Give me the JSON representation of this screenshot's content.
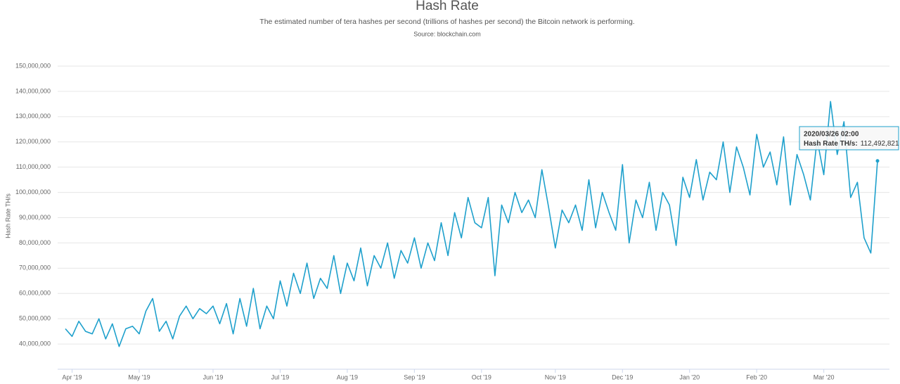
{
  "chart_data": {
    "type": "line",
    "title": "Hash Rate",
    "subtitle": "The estimated number of tera hashes per second (trillions of hashes per second) the Bitcoin network is performing.",
    "source": "Source: blockchain.com",
    "y_label": "Hash Rate TH/s",
    "categories": [
      null,
      "Apr '19",
      null,
      null,
      null,
      null,
      null,
      null,
      null,
      null,
      null,
      "May '19",
      null,
      null,
      null,
      null,
      null,
      null,
      null,
      null,
      null,
      null,
      "Jun '19",
      null,
      null,
      null,
      null,
      null,
      null,
      null,
      null,
      null,
      "Jul '19",
      null,
      null,
      null,
      null,
      null,
      null,
      null,
      null,
      null,
      "Aug '19",
      null,
      null,
      null,
      null,
      null,
      null,
      null,
      null,
      null,
      "Sep '19",
      null,
      null,
      null,
      null,
      null,
      null,
      null,
      null,
      null,
      "Oct '19",
      null,
      null,
      null,
      null,
      null,
      null,
      null,
      null,
      null,
      null,
      "Nov '19",
      null,
      null,
      null,
      null,
      null,
      null,
      null,
      null,
      null,
      "Dec '19",
      null,
      null,
      null,
      null,
      null,
      null,
      null,
      null,
      null,
      "Jan '20",
      null,
      null,
      null,
      null,
      null,
      null,
      null,
      null,
      null,
      "Feb '20",
      null,
      null,
      null,
      null,
      null,
      null,
      null,
      null,
      null,
      "Mar '20",
      null,
      null,
      null,
      null,
      null,
      null,
      null,
      null
    ],
    "series": [
      {
        "name": "Hash Rate TH/s",
        "color": "#1ea0cc",
        "values": [
          46000000,
          43000000,
          49000000,
          45000000,
          44000000,
          50000000,
          42000000,
          48000000,
          39000000,
          46000000,
          47000000,
          44000000,
          53000000,
          58000000,
          45000000,
          49000000,
          42000000,
          51000000,
          55000000,
          50000000,
          54000000,
          52000000,
          55000000,
          48000000,
          56000000,
          44000000,
          58000000,
          47000000,
          62000000,
          46000000,
          55000000,
          50000000,
          65000000,
          55000000,
          68000000,
          60000000,
          72000000,
          58000000,
          66000000,
          62000000,
          75000000,
          60000000,
          72000000,
          65000000,
          78000000,
          63000000,
          75000000,
          70000000,
          80000000,
          66000000,
          77000000,
          72000000,
          82000000,
          70000000,
          80000000,
          73000000,
          88000000,
          75000000,
          92000000,
          82000000,
          98000000,
          88000000,
          86000000,
          98000000,
          67000000,
          95000000,
          88000000,
          100000000,
          92000000,
          97000000,
          90000000,
          109000000,
          94000000,
          78000000,
          93000000,
          88000000,
          95000000,
          85000000,
          105000000,
          86000000,
          100000000,
          92000000,
          85000000,
          111000000,
          80000000,
          97000000,
          90000000,
          104000000,
          85000000,
          100000000,
          95000000,
          79000000,
          106000000,
          98000000,
          113000000,
          97000000,
          108000000,
          105000000,
          120000000,
          100000000,
          118000000,
          110000000,
          99000000,
          123000000,
          110000000,
          116000000,
          103000000,
          122000000,
          95000000,
          115000000,
          107000000,
          97000000,
          121000000,
          107000000,
          136000000,
          115000000,
          128000000,
          98000000,
          104000000,
          82000000,
          76000000,
          112492821
        ]
      }
    ],
    "ylim": [
      30000000,
      150000000
    ],
    "yticks": [
      {
        "value": 40000000,
        "label": "40,000,000"
      },
      {
        "value": 50000000,
        "label": "50,000,000"
      },
      {
        "value": 60000000,
        "label": "60,000,000"
      },
      {
        "value": 70000000,
        "label": "70,000,000"
      },
      {
        "value": 80000000,
        "label": "80,000,000"
      },
      {
        "value": 90000000,
        "label": "90,000,000"
      },
      {
        "value": 100000000,
        "label": "100,000,000"
      },
      {
        "value": 110000000,
        "label": "110,000,000"
      },
      {
        "value": 120000000,
        "label": "120,000,000"
      },
      {
        "value": 130000000,
        "label": "130,000,000"
      },
      {
        "value": 140000000,
        "label": "140,000,000"
      },
      {
        "value": 150000000,
        "label": "150,000,000"
      }
    ],
    "grid": true,
    "tooltip": {
      "date": "2020/03/26 02:00",
      "label": "Hash Rate TH/s:",
      "value": {
        "value": 112492821,
        "label": "112,492,821"
      }
    }
  }
}
